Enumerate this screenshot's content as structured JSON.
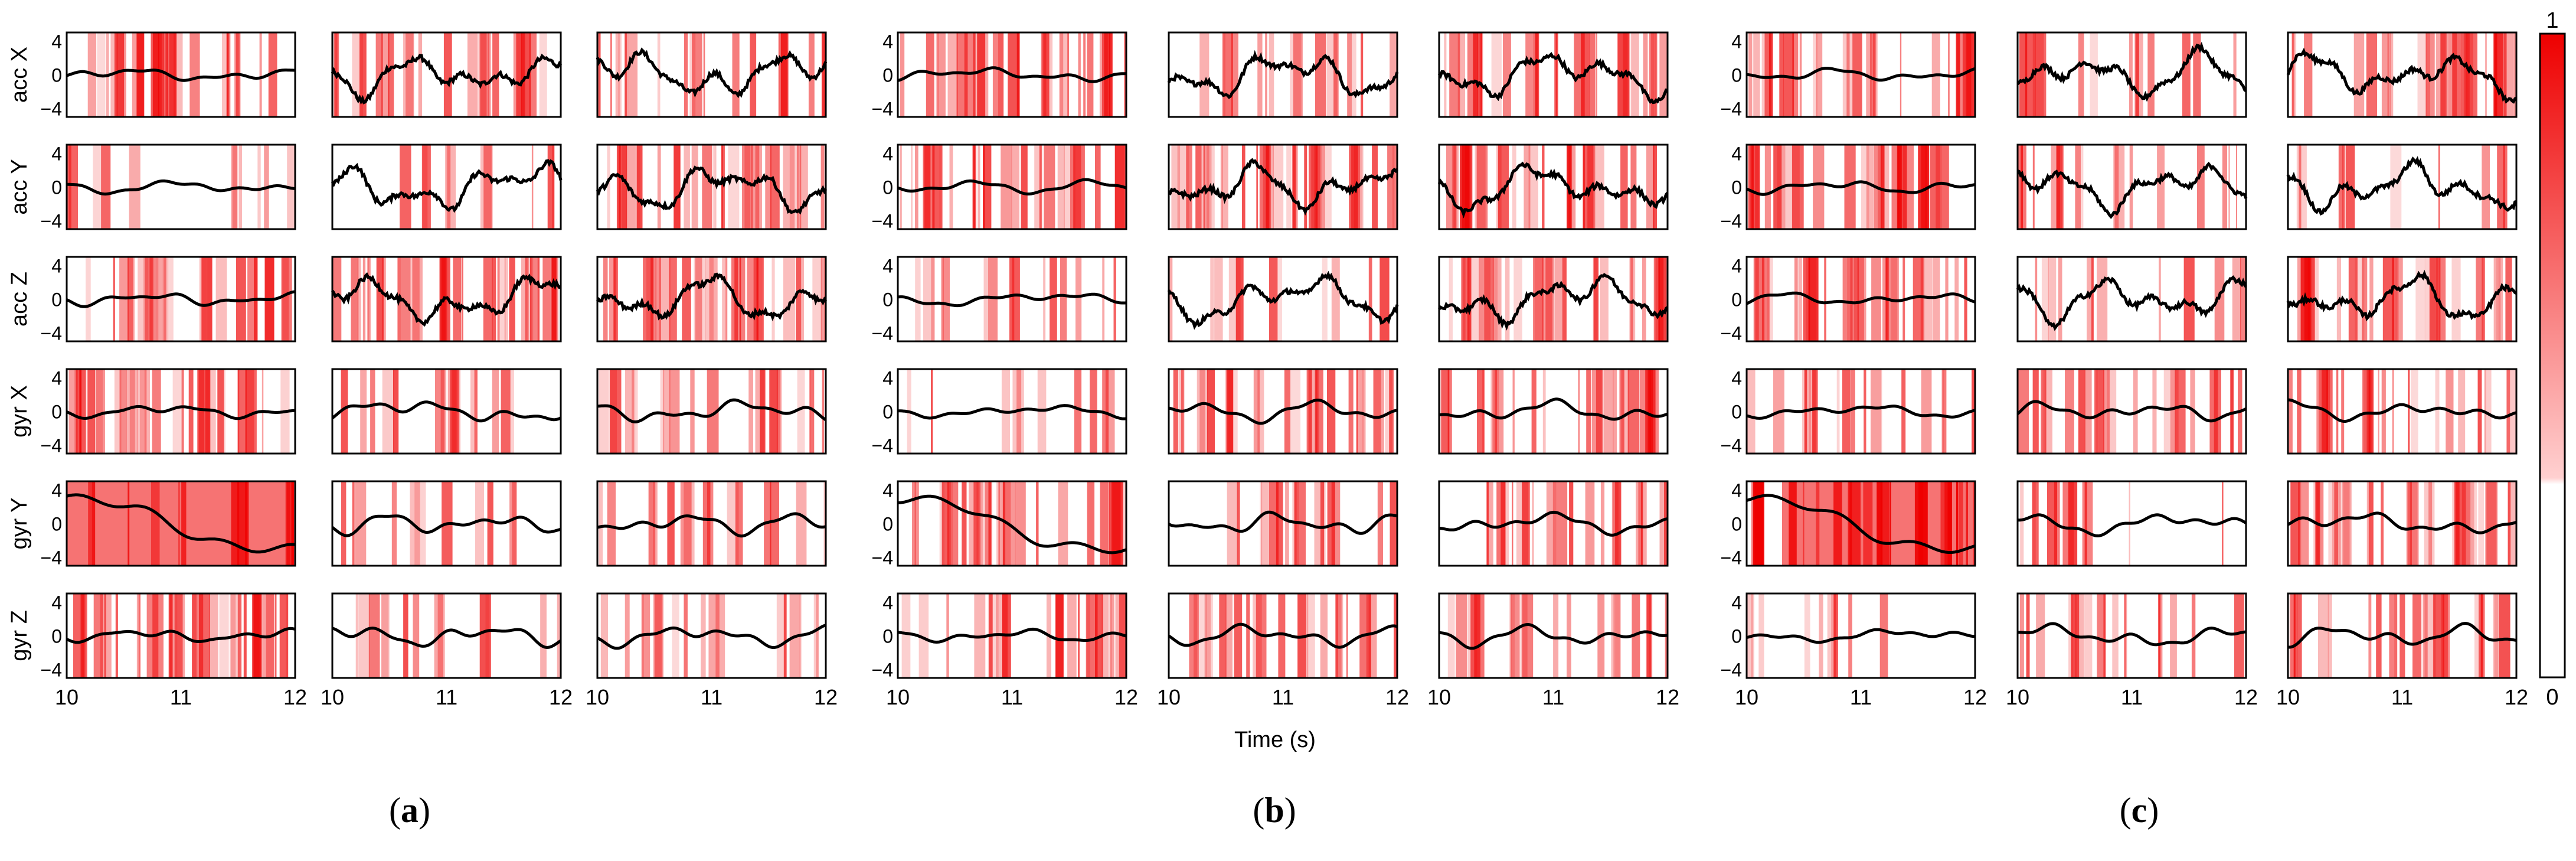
{
  "chart_data": {
    "type": "heatmap",
    "description_free": true,
    "x_axis": {
      "label": "Time (s)",
      "range": [
        10,
        12
      ],
      "ticks": [
        "10",
        "11",
        "12"
      ]
    },
    "y_axis": {
      "range": [
        -5,
        5
      ],
      "ticks": [
        "4",
        "0",
        "-4"
      ]
    },
    "channels": [
      "acc X",
      "acc Y",
      "acc Z",
      "gyr X",
      "gyr Y",
      "gyr Z"
    ],
    "colorbar": {
      "range": [
        0,
        1
      ],
      "ticks": [
        "0",
        "1"
      ],
      "low_color": "#ffffff",
      "high_color": "#ee0000"
    },
    "panels": [
      {
        "label": "a",
        "columns": 3
      },
      {
        "label": "b",
        "columns": 3
      },
      {
        "label": "c",
        "columns": 3
      }
    ],
    "signal_amplitude": {
      "gyr Y column 1": "slow drift from about 3 down to about -3",
      "other": "oscillation roughly within -3..3"
    }
  },
  "labels": {
    "xlabel": "Time (s)",
    "panel_a": "a",
    "panel_b": "b",
    "panel_c": "c"
  },
  "colors": {
    "trace": "#000000",
    "relevance": "#ee0000",
    "axes": "#000000"
  }
}
